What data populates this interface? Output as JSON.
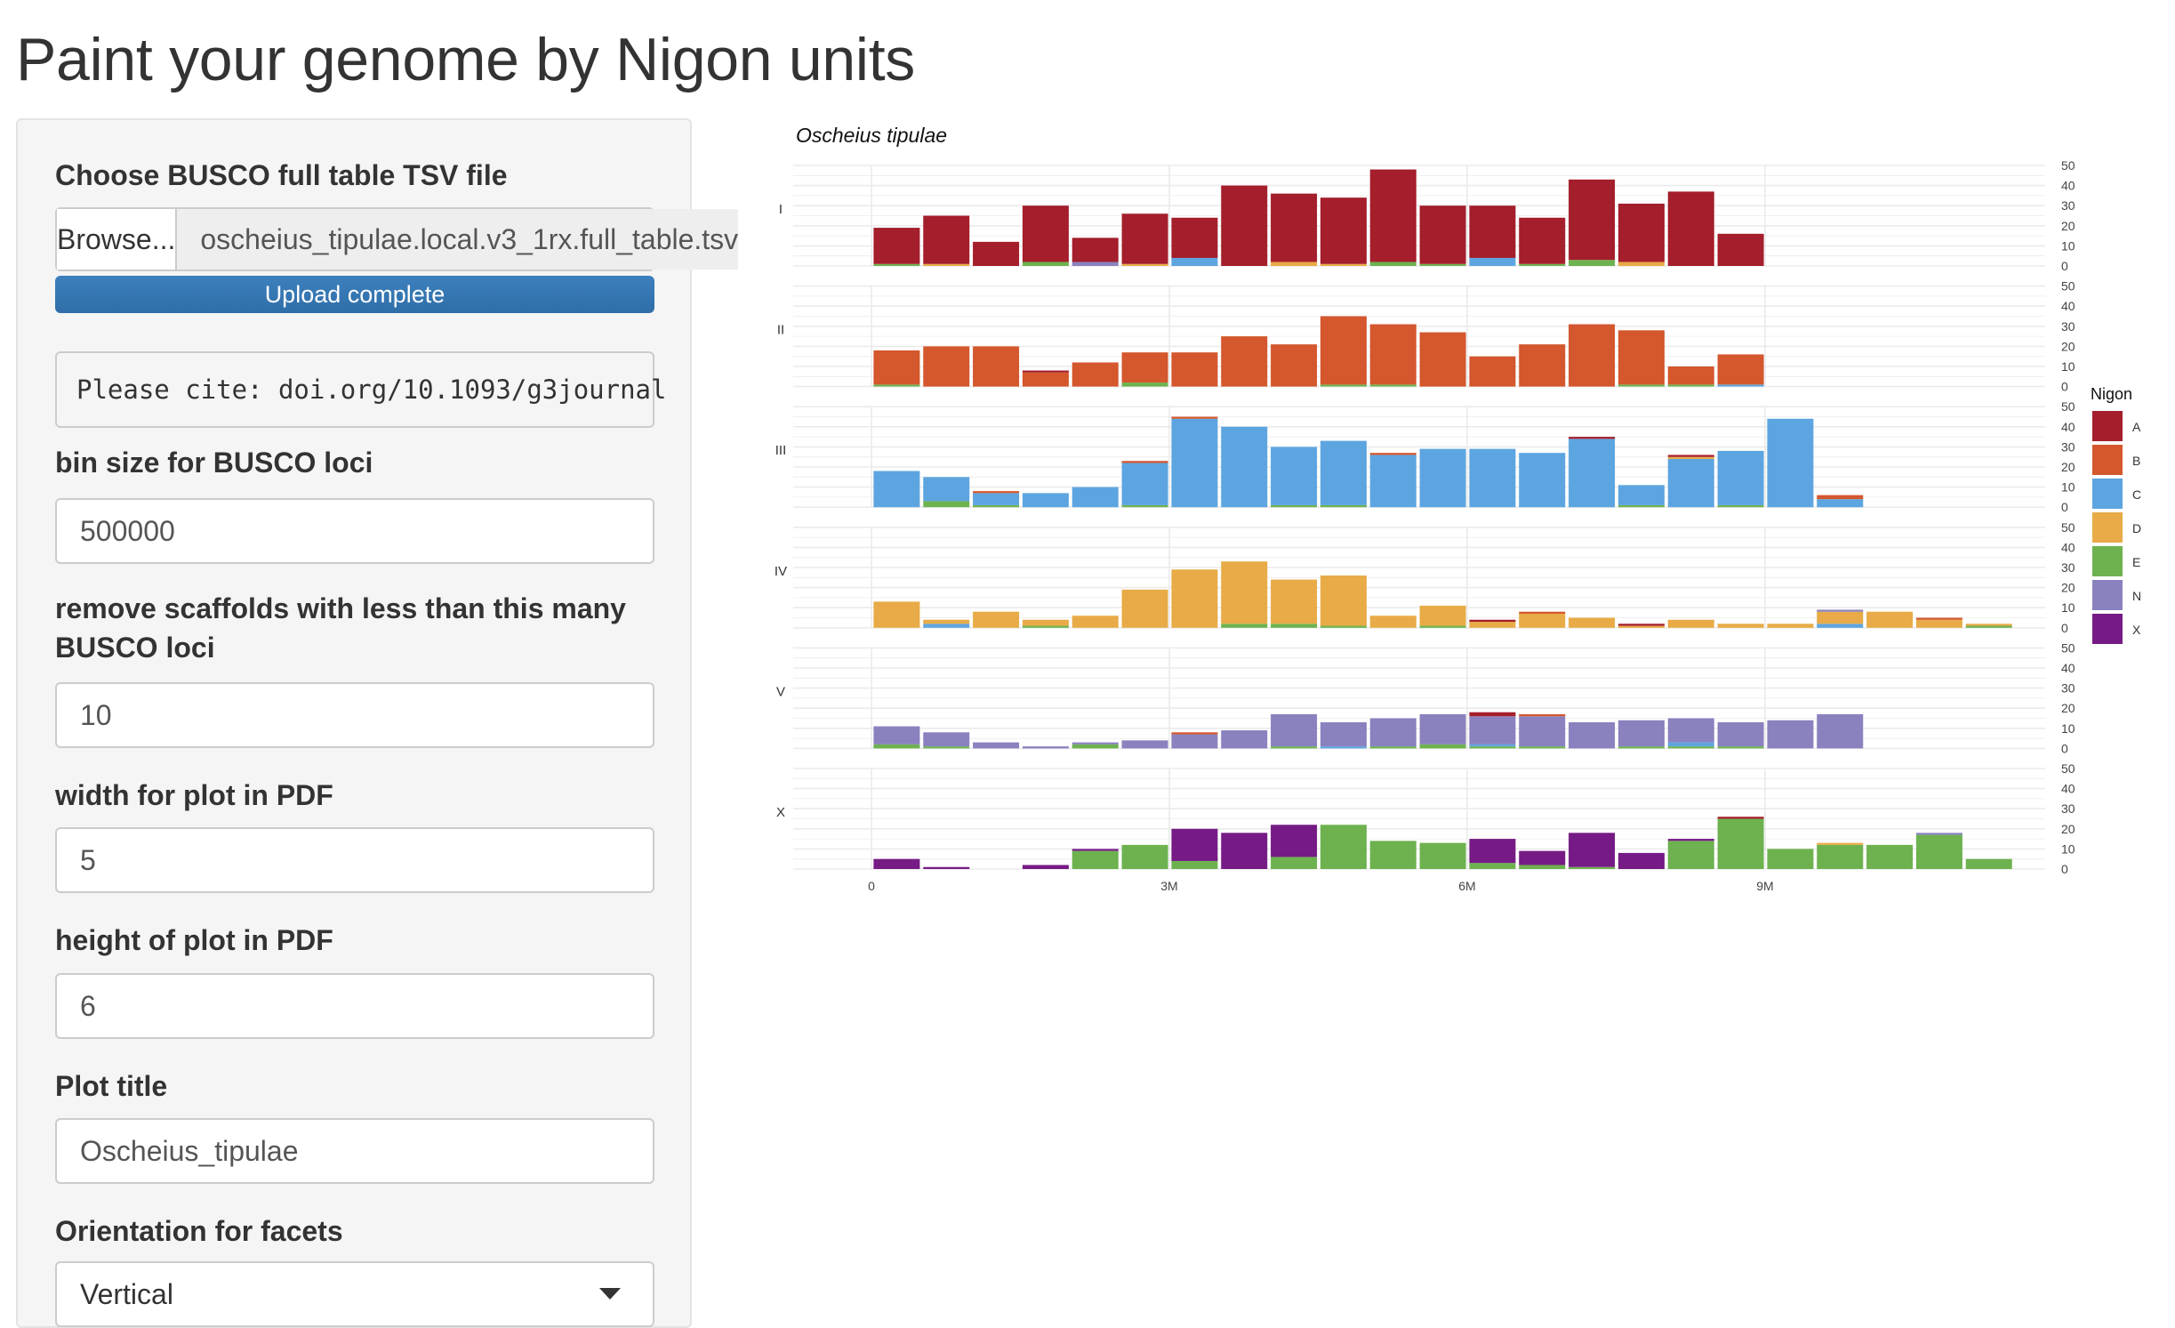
{
  "page": {
    "title": "Paint your genome by Nigon units"
  },
  "sidebar": {
    "file_label": "Choose BUSCO full table TSV file",
    "browse_label": "Browse...",
    "file_name": "oscheius_tipulae.local.v3_1rx.full_table.tsv",
    "upload_status": "Upload complete",
    "cite_text": "Please cite: doi.org/10.1093/g3journal",
    "bin_size_label": "bin size for BUSCO loci",
    "bin_size_value": "500000",
    "min_loci_label": "remove scaffolds with less than this many BUSCO loci",
    "min_loci_value": "10",
    "width_label": "width for plot in PDF",
    "width_value": "5",
    "height_label": "height of plot in PDF",
    "height_value": "6",
    "plot_title_label": "Plot title",
    "plot_title_value": "Oscheius_tipulae",
    "orientation_label": "Orientation for facets",
    "orientation_value": "Vertical"
  },
  "colors": {
    "A": "#a41e2c",
    "B": "#d4572d",
    "C": "#5da5e0",
    "D": "#e8ab47",
    "E": "#6db24f",
    "N": "#8a82bf",
    "X": "#761b85"
  },
  "chart_data": {
    "type": "bar",
    "stacked": true,
    "title": "Oscheius tipulae",
    "legend_title": "Nigon",
    "legend": [
      "A",
      "B",
      "C",
      "D",
      "E",
      "N",
      "X"
    ],
    "legend_placement": "right",
    "facet_orientation": "vertical",
    "bin_size": 500000,
    "x_ticks": [
      0,
      3000000,
      6000000,
      9000000
    ],
    "x_tick_labels": [
      "0",
      "3M",
      "6M",
      "9M"
    ],
    "y_ticks": [
      0,
      10,
      20,
      30,
      40,
      50
    ],
    "ylim": [
      0,
      50
    ],
    "grid": true,
    "facets": [
      {
        "name": "I",
        "bins": [
          [
            0,
            {
              "A": 18,
              "E": 1
            }
          ],
          [
            500000,
            {
              "A": 24,
              "D": 1
            }
          ],
          [
            1000000,
            {
              "A": 12
            }
          ],
          [
            1500000,
            {
              "A": 28,
              "E": 2
            }
          ],
          [
            2000000,
            {
              "A": 12,
              "N": 2
            }
          ],
          [
            2500000,
            {
              "A": 25,
              "D": 1
            }
          ],
          [
            3000000,
            {
              "A": 20,
              "C": 4
            }
          ],
          [
            3500000,
            {
              "A": 40
            }
          ],
          [
            4000000,
            {
              "A": 34,
              "D": 2
            }
          ],
          [
            4500000,
            {
              "A": 33,
              "D": 1
            }
          ],
          [
            5000000,
            {
              "A": 46,
              "E": 2
            }
          ],
          [
            5500000,
            {
              "A": 29,
              "E": 1
            }
          ],
          [
            6000000,
            {
              "A": 26,
              "C": 4
            }
          ],
          [
            6500000,
            {
              "A": 23,
              "E": 1
            }
          ],
          [
            7000000,
            {
              "A": 40,
              "E": 3
            }
          ],
          [
            7500000,
            {
              "A": 29,
              "D": 2
            }
          ],
          [
            8000000,
            {
              "A": 37
            }
          ],
          [
            8500000,
            {
              "A": 16
            }
          ]
        ]
      },
      {
        "name": "II",
        "bins": [
          [
            0,
            {
              "B": 17,
              "E": 1
            }
          ],
          [
            500000,
            {
              "B": 20
            }
          ],
          [
            1000000,
            {
              "B": 20
            }
          ],
          [
            1500000,
            {
              "B": 7,
              "A": 1
            }
          ],
          [
            2000000,
            {
              "B": 12
            }
          ],
          [
            2500000,
            {
              "B": 15,
              "E": 2
            }
          ],
          [
            3000000,
            {
              "B": 17
            }
          ],
          [
            3500000,
            {
              "B": 25
            }
          ],
          [
            4000000,
            {
              "B": 21
            }
          ],
          [
            4500000,
            {
              "B": 34,
              "E": 1
            }
          ],
          [
            5000000,
            {
              "B": 30,
              "E": 1
            }
          ],
          [
            5500000,
            {
              "B": 27
            }
          ],
          [
            6000000,
            {
              "B": 15
            }
          ],
          [
            6500000,
            {
              "B": 21
            }
          ],
          [
            7000000,
            {
              "B": 31
            }
          ],
          [
            7500000,
            {
              "B": 27,
              "E": 1
            }
          ],
          [
            8000000,
            {
              "B": 9,
              "E": 1
            }
          ],
          [
            8500000,
            {
              "B": 15,
              "C": 1
            }
          ]
        ]
      },
      {
        "name": "III",
        "bins": [
          [
            0,
            {
              "C": 18
            }
          ],
          [
            500000,
            {
              "C": 12,
              "E": 3
            }
          ],
          [
            1000000,
            {
              "C": 6,
              "E": 1,
              "B": 1
            }
          ],
          [
            1500000,
            {
              "C": 7
            }
          ],
          [
            2000000,
            {
              "C": 10
            }
          ],
          [
            2500000,
            {
              "C": 21,
              "E": 1,
              "B": 1
            }
          ],
          [
            3000000,
            {
              "C": 44,
              "B": 1
            }
          ],
          [
            3500000,
            {
              "C": 40
            }
          ],
          [
            4000000,
            {
              "C": 29,
              "E": 1
            }
          ],
          [
            4500000,
            {
              "C": 32,
              "E": 1
            }
          ],
          [
            5000000,
            {
              "C": 26,
              "B": 1
            }
          ],
          [
            5500000,
            {
              "C": 29
            }
          ],
          [
            6000000,
            {
              "C": 29
            }
          ],
          [
            6500000,
            {
              "C": 27
            }
          ],
          [
            7000000,
            {
              "C": 34,
              "A": 1
            }
          ],
          [
            7500000,
            {
              "C": 10,
              "E": 1
            }
          ],
          [
            8000000,
            {
              "C": 24,
              "D": 1,
              "A": 1
            }
          ],
          [
            8500000,
            {
              "C": 27,
              "E": 1
            }
          ],
          [
            9000000,
            {
              "C": 44
            }
          ],
          [
            9500000,
            {
              "C": 4,
              "B": 2
            }
          ]
        ]
      },
      {
        "name": "IV",
        "bins": [
          [
            0,
            {
              "D": 13
            }
          ],
          [
            500000,
            {
              "D": 2,
              "C": 2
            }
          ],
          [
            1000000,
            {
              "D": 8
            }
          ],
          [
            1500000,
            {
              "D": 3,
              "E": 1
            }
          ],
          [
            2000000,
            {
              "D": 6
            }
          ],
          [
            2500000,
            {
              "D": 19
            }
          ],
          [
            3000000,
            {
              "D": 29
            }
          ],
          [
            3500000,
            {
              "D": 31,
              "E": 2
            }
          ],
          [
            4000000,
            {
              "D": 22,
              "E": 2
            }
          ],
          [
            4500000,
            {
              "D": 25,
              "E": 1
            }
          ],
          [
            5000000,
            {
              "D": 6
            }
          ],
          [
            5500000,
            {
              "D": 10,
              "E": 1
            }
          ],
          [
            6000000,
            {
              "D": 3,
              "A": 1
            }
          ],
          [
            6500000,
            {
              "D": 7,
              "B": 1
            }
          ],
          [
            7000000,
            {
              "D": 5
            }
          ],
          [
            7500000,
            {
              "D": 1,
              "A": 1
            }
          ],
          [
            8000000,
            {
              "D": 4
            }
          ],
          [
            8500000,
            {
              "D": 2
            }
          ],
          [
            9000000,
            {
              "D": 2
            }
          ],
          [
            9500000,
            {
              "D": 6,
              "C": 2,
              "N": 1
            }
          ],
          [
            10000000,
            {
              "D": 8
            }
          ],
          [
            10500000,
            {
              "D": 4,
              "B": 1
            }
          ],
          [
            11000000,
            {
              "D": 1,
              "E": 1
            }
          ]
        ]
      },
      {
        "name": "V",
        "bins": [
          [
            0,
            {
              "N": 9,
              "E": 2
            }
          ],
          [
            500000,
            {
              "N": 7,
              "E": 1
            }
          ],
          [
            1000000,
            {
              "N": 3
            }
          ],
          [
            1500000,
            {
              "N": 1
            }
          ],
          [
            2000000,
            {
              "N": 1,
              "E": 2
            }
          ],
          [
            2500000,
            {
              "N": 4
            }
          ],
          [
            3000000,
            {
              "N": 7,
              "B": 1
            }
          ],
          [
            3500000,
            {
              "N": 9
            }
          ],
          [
            4000000,
            {
              "N": 16,
              "E": 1
            }
          ],
          [
            4500000,
            {
              "N": 12,
              "C": 1
            }
          ],
          [
            5000000,
            {
              "N": 14,
              "E": 1
            }
          ],
          [
            5500000,
            {
              "N": 15,
              "E": 2
            }
          ],
          [
            6000000,
            {
              "N": 14,
              "E": 1,
              "C": 1,
              "A": 2
            }
          ],
          [
            6500000,
            {
              "N": 15,
              "E": 1,
              "B": 1
            }
          ],
          [
            7000000,
            {
              "N": 13
            }
          ],
          [
            7500000,
            {
              "N": 13,
              "E": 1
            }
          ],
          [
            8000000,
            {
              "N": 12,
              "E": 1,
              "C": 2
            }
          ],
          [
            8500000,
            {
              "N": 12,
              "E": 1
            }
          ],
          [
            9000000,
            {
              "N": 14
            }
          ],
          [
            9500000,
            {
              "N": 17
            }
          ]
        ]
      },
      {
        "name": "X",
        "bins": [
          [
            0,
            {
              "X": 5
            }
          ],
          [
            500000,
            {
              "X": 1
            }
          ],
          [
            1500000,
            {
              "X": 2
            }
          ],
          [
            2000000,
            {
              "X": 1,
              "E": 9
            }
          ],
          [
            2500000,
            {
              "E": 12
            }
          ],
          [
            3000000,
            {
              "X": 16,
              "E": 4
            }
          ],
          [
            3500000,
            {
              "X": 18
            }
          ],
          [
            4000000,
            {
              "X": 16,
              "E": 6
            }
          ],
          [
            4500000,
            {
              "E": 22
            }
          ],
          [
            5000000,
            {
              "E": 14
            }
          ],
          [
            5500000,
            {
              "E": 13
            }
          ],
          [
            6000000,
            {
              "X": 12,
              "E": 3
            }
          ],
          [
            6500000,
            {
              "X": 7,
              "E": 2
            }
          ],
          [
            7000000,
            {
              "X": 17,
              "E": 1
            }
          ],
          [
            7500000,
            {
              "X": 8
            }
          ],
          [
            8000000,
            {
              "X": 1,
              "E": 14
            }
          ],
          [
            8500000,
            {
              "E": 25,
              "A": 1
            }
          ],
          [
            9000000,
            {
              "E": 10
            }
          ],
          [
            9500000,
            {
              "E": 12,
              "D": 1
            }
          ],
          [
            10000000,
            {
              "E": 12
            }
          ],
          [
            10500000,
            {
              "E": 17,
              "N": 1
            }
          ],
          [
            11000000,
            {
              "E": 5
            }
          ]
        ]
      }
    ]
  }
}
